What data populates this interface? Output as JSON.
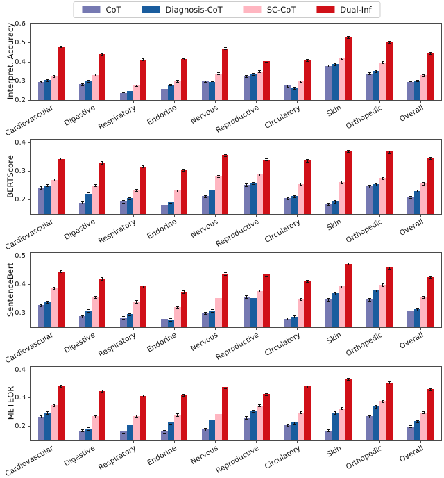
{
  "legend": {
    "items": [
      {
        "label": "CoT",
        "color": "#7679b2"
      },
      {
        "label": "Diagnosis-CoT",
        "color": "#1a5d9e"
      },
      {
        "label": "SC-CoT",
        "color": "#ffb6c1"
      },
      {
        "label": "Dual-Inf",
        "color": "#d01018"
      }
    ]
  },
  "chart_data": [
    {
      "type": "bar",
      "ylabel": "Interpret. Accuracy",
      "ylim": [
        0.2,
        0.6
      ],
      "yticks": [
        0.2,
        0.3,
        0.4,
        0.5,
        0.6
      ],
      "grid": false,
      "legend_position": "figure-top-center",
      "error_bar_approx": 0.005,
      "categories": [
        "Cardiovascular",
        "Digestive",
        "Respiratory",
        "Endorine",
        "Nervous",
        "Reproductive",
        "Circulatory",
        "Skin",
        "Orthopedic",
        "Overall"
      ],
      "series": [
        {
          "name": "CoT",
          "color": "#7679b2",
          "values": [
            0.295,
            0.282,
            0.236,
            0.26,
            0.298,
            0.325,
            0.275,
            0.38,
            0.34,
            0.295
          ]
        },
        {
          "name": "Diagnosis-CoT",
          "color": "#1a5d9e",
          "values": [
            0.305,
            0.3,
            0.248,
            0.28,
            0.295,
            0.336,
            0.265,
            0.388,
            0.352,
            0.302
          ]
        },
        {
          "name": "SC-CoT",
          "color": "#ffb6c1",
          "values": [
            0.325,
            0.332,
            0.276,
            0.3,
            0.34,
            0.35,
            0.298,
            0.418,
            0.398,
            0.33
          ]
        },
        {
          "name": "Dual-Inf",
          "color": "#d01018",
          "values": [
            0.48,
            0.44,
            0.412,
            0.415,
            0.47,
            0.405,
            0.41,
            0.53,
            0.505,
            0.445
          ]
        }
      ]
    },
    {
      "type": "bar",
      "ylabel": "BERTScore",
      "ylim": [
        0.15,
        0.41
      ],
      "yticks": [
        0.2,
        0.3,
        0.4
      ],
      "grid": false,
      "legend_position": "figure-top-center",
      "error_bar_approx": 0.004,
      "categories": [
        "Cardiovascular",
        "Digestive",
        "Respiratory",
        "Endorine",
        "Nervous",
        "Reproductive",
        "Circulatory",
        "Skin",
        "Orthopedic",
        "Overall"
      ],
      "series": [
        {
          "name": "CoT",
          "color": "#7679b2",
          "values": [
            0.242,
            0.19,
            0.194,
            0.182,
            0.212,
            0.252,
            0.205,
            0.186,
            0.247,
            0.209
          ]
        },
        {
          "name": "Diagnosis-CoT",
          "color": "#1a5d9e",
          "values": [
            0.25,
            0.221,
            0.205,
            0.192,
            0.232,
            0.258,
            0.212,
            0.194,
            0.254,
            0.231
          ]
        },
        {
          "name": "SC-CoT",
          "color": "#ffb6c1",
          "values": [
            0.27,
            0.25,
            0.234,
            0.232,
            0.282,
            0.288,
            0.255,
            0.262,
            0.276,
            0.257
          ]
        },
        {
          "name": "Dual-Inf",
          "color": "#d01018",
          "values": [
            0.343,
            0.33,
            0.316,
            0.304,
            0.356,
            0.34,
            0.337,
            0.37,
            0.368,
            0.345
          ]
        }
      ]
    },
    {
      "type": "bar",
      "ylabel": "SentenceBert",
      "ylim": [
        0.25,
        0.51
      ],
      "yticks": [
        0.3,
        0.4,
        0.5
      ],
      "grid": false,
      "legend_position": "figure-top-center",
      "error_bar_approx": 0.004,
      "categories": [
        "Cardiovascular",
        "Digestive",
        "Respiratory",
        "Endorine",
        "Nervous",
        "Reproductive",
        "Circulatory",
        "Skin",
        "Orthopedic",
        "Overall"
      ],
      "series": [
        {
          "name": "CoT",
          "color": "#7679b2",
          "values": [
            0.327,
            0.288,
            0.284,
            0.28,
            0.3,
            0.357,
            0.28,
            0.347,
            0.347,
            0.305
          ]
        },
        {
          "name": "Diagnosis-CoT",
          "color": "#1a5d9e",
          "values": [
            0.338,
            0.308,
            0.295,
            0.277,
            0.308,
            0.353,
            0.287,
            0.368,
            0.378,
            0.312
          ]
        },
        {
          "name": "SC-CoT",
          "color": "#ffb6c1",
          "values": [
            0.388,
            0.355,
            0.34,
            0.32,
            0.353,
            0.377,
            0.348,
            0.393,
            0.398,
            0.355
          ]
        },
        {
          "name": "Dual-Inf",
          "color": "#d01018",
          "values": [
            0.445,
            0.42,
            0.393,
            0.374,
            0.437,
            0.434,
            0.412,
            0.472,
            0.458,
            0.426
          ]
        }
      ]
    },
    {
      "type": "bar",
      "ylabel": "METEOR",
      "ylim": [
        0.15,
        0.41
      ],
      "yticks": [
        0.2,
        0.3,
        0.4
      ],
      "grid": false,
      "legend_position": "figure-top-center",
      "error_bar_approx": 0.004,
      "categories": [
        "Cardiovascular",
        "Digestive",
        "Respiratory",
        "Endorine",
        "Nervous",
        "Reproductive",
        "Circulatory",
        "Skin",
        "Orthopedic",
        "Overall"
      ],
      "series": [
        {
          "name": "CoT",
          "color": "#7679b2",
          "values": [
            0.234,
            0.185,
            0.181,
            0.182,
            0.189,
            0.231,
            0.206,
            0.185,
            0.235,
            0.2
          ]
        },
        {
          "name": "Diagnosis-CoT",
          "color": "#1a5d9e",
          "values": [
            0.248,
            0.192,
            0.203,
            0.213,
            0.22,
            0.254,
            0.213,
            0.248,
            0.27,
            0.218
          ]
        },
        {
          "name": "SC-CoT",
          "color": "#ffb6c1",
          "values": [
            0.274,
            0.235,
            0.237,
            0.241,
            0.244,
            0.273,
            0.249,
            0.264,
            0.289,
            0.249
          ]
        },
        {
          "name": "Dual-Inf",
          "color": "#d01018",
          "values": [
            0.342,
            0.325,
            0.308,
            0.31,
            0.339,
            0.314,
            0.341,
            0.367,
            0.354,
            0.331
          ]
        }
      ]
    }
  ]
}
